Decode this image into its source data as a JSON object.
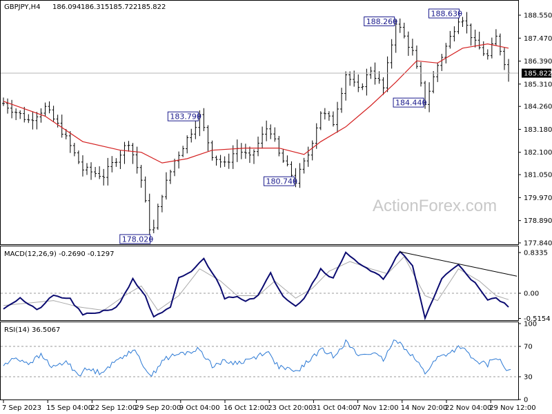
{
  "chart_data": [
    {
      "type": "candlestick",
      "title": "GBPJPY,H4",
      "ohlc_readout": [
        "186.094",
        "186.315",
        "185.722",
        "185.822"
      ],
      "watermark": "ActionForex.com",
      "ylim": [
        177.84,
        189.0
      ],
      "y_ticks": [
        "188.550",
        "187.470",
        "186.390",
        "185.310",
        "184.260",
        "183.180",
        "182.100",
        "181.050",
        "179.970",
        "178.890",
        "177.840"
      ],
      "last_price": "185.822",
      "x_ticks": [
        "7 Sep 2023",
        "15 Sep 04:00",
        "22 Sep 12:00",
        "29 Sep 20:00",
        "9 Oct 04:00",
        "16 Oct 12:00",
        "23 Oct 20:00",
        "31 Oct 04:00",
        "7 Nov 12:00",
        "14 Nov 20:00",
        "22 Nov 04:00",
        "29 Nov 12:00"
      ],
      "price_anchors": [
        {
          "t": 0,
          "v": 184.4
        },
        {
          "t": 6,
          "v": 183.6
        },
        {
          "t": 10,
          "v": 184.2
        },
        {
          "t": 14,
          "v": 183.1
        },
        {
          "t": 19,
          "v": 181.3
        },
        {
          "t": 24,
          "v": 181.0
        },
        {
          "t": 30,
          "v": 182.6
        },
        {
          "t": 33,
          "v": 180.8
        },
        {
          "t": 35.5,
          "v": 178.02
        },
        {
          "t": 37.5,
          "v": 179.9
        },
        {
          "t": 41,
          "v": 181.7
        },
        {
          "t": 47,
          "v": 183.79
        },
        {
          "t": 50,
          "v": 182.0
        },
        {
          "t": 53,
          "v": 181.5
        },
        {
          "t": 56,
          "v": 182.3
        },
        {
          "t": 59,
          "v": 181.8
        },
        {
          "t": 63.5,
          "v": 183.4
        },
        {
          "t": 66,
          "v": 182.0
        },
        {
          "t": 70,
          "v": 180.74
        },
        {
          "t": 73,
          "v": 182.0
        },
        {
          "t": 76,
          "v": 184.0
        },
        {
          "t": 79,
          "v": 183.5
        },
        {
          "t": 82,
          "v": 185.8
        },
        {
          "t": 85,
          "v": 185.0
        },
        {
          "t": 88,
          "v": 186.0
        },
        {
          "t": 91,
          "v": 185.1
        },
        {
          "t": 94,
          "v": 188.26
        },
        {
          "t": 98,
          "v": 186.8
        },
        {
          "t": 101,
          "v": 184.44
        },
        {
          "t": 104,
          "v": 186.2
        },
        {
          "t": 107,
          "v": 187.5
        },
        {
          "t": 109.5,
          "v": 188.63
        },
        {
          "t": 113,
          "v": 187.2
        },
        {
          "t": 116,
          "v": 186.6
        },
        {
          "t": 118,
          "v": 187.5
        },
        {
          "t": 121,
          "v": 185.82
        }
      ],
      "moving_average": [
        {
          "t": 0,
          "v": 184.5
        },
        {
          "t": 10,
          "v": 183.8
        },
        {
          "t": 19,
          "v": 182.6
        },
        {
          "t": 28,
          "v": 182.2
        },
        {
          "t": 33,
          "v": 182.1
        },
        {
          "t": 38,
          "v": 181.6
        },
        {
          "t": 44,
          "v": 181.8
        },
        {
          "t": 50,
          "v": 182.2
        },
        {
          "t": 58,
          "v": 182.3
        },
        {
          "t": 66,
          "v": 182.3
        },
        {
          "t": 72,
          "v": 182.0
        },
        {
          "t": 76,
          "v": 182.6
        },
        {
          "t": 82,
          "v": 183.3
        },
        {
          "t": 88,
          "v": 184.3
        },
        {
          "t": 94,
          "v": 185.4
        },
        {
          "t": 99,
          "v": 186.4
        },
        {
          "t": 104,
          "v": 186.3
        },
        {
          "t": 110,
          "v": 187.0
        },
        {
          "t": 116,
          "v": 187.2
        },
        {
          "t": 121,
          "v": 187.0
        }
      ],
      "annotations": [
        {
          "text": "178.020",
          "t": 35.5,
          "v": 178.02,
          "side": "left"
        },
        {
          "text": "183.790",
          "t": 47,
          "v": 183.79,
          "side": "left"
        },
        {
          "text": "180.740",
          "t": 70,
          "v": 180.74,
          "side": "left"
        },
        {
          "text": "188.260",
          "t": 94,
          "v": 188.26,
          "side": "left"
        },
        {
          "text": "184.440",
          "t": 101,
          "v": 184.44,
          "side": "left"
        },
        {
          "text": "188.630",
          "t": 109.5,
          "v": 188.63,
          "side": "left"
        }
      ]
    },
    {
      "type": "line",
      "title": "MACD(12,26,9) -0.2690 -0.1297",
      "ylim": [
        -0.62,
        0.88
      ],
      "y_ticks": [
        "0.8335",
        "0.00",
        "-0.5154"
      ],
      "zero_level": 0.0,
      "macd": [
        {
          "t": 0,
          "v": -0.3
        },
        {
          "t": 4,
          "v": -0.1
        },
        {
          "t": 8,
          "v": -0.35
        },
        {
          "t": 12,
          "v": -0.05
        },
        {
          "t": 16,
          "v": -0.12
        },
        {
          "t": 19,
          "v": -0.45
        },
        {
          "t": 23,
          "v": -0.38
        },
        {
          "t": 27,
          "v": -0.3
        },
        {
          "t": 31,
          "v": 0.28
        },
        {
          "t": 34,
          "v": -0.05
        },
        {
          "t": 36,
          "v": -0.5
        },
        {
          "t": 40,
          "v": -0.3
        },
        {
          "t": 42,
          "v": 0.3
        },
        {
          "t": 45,
          "v": 0.45
        },
        {
          "t": 48,
          "v": 0.7
        },
        {
          "t": 51,
          "v": 0.3
        },
        {
          "t": 53,
          "v": -0.1
        },
        {
          "t": 56,
          "v": -0.05
        },
        {
          "t": 58,
          "v": -0.15
        },
        {
          "t": 61,
          "v": -0.05
        },
        {
          "t": 64,
          "v": 0.4
        },
        {
          "t": 67,
          "v": -0.05
        },
        {
          "t": 70,
          "v": -0.25
        },
        {
          "t": 72,
          "v": -0.1
        },
        {
          "t": 76,
          "v": 0.5
        },
        {
          "t": 79,
          "v": 0.3
        },
        {
          "t": 82,
          "v": 0.85
        },
        {
          "t": 86,
          "v": 0.55
        },
        {
          "t": 89,
          "v": 0.4
        },
        {
          "t": 91,
          "v": 0.3
        },
        {
          "t": 95,
          "v": 0.85
        },
        {
          "t": 98,
          "v": 0.55
        },
        {
          "t": 101,
          "v": -0.5
        },
        {
          "t": 105,
          "v": 0.3
        },
        {
          "t": 109,
          "v": 0.6
        },
        {
          "t": 113,
          "v": 0.2
        },
        {
          "t": 116,
          "v": -0.15
        },
        {
          "t": 118,
          "v": -0.1
        },
        {
          "t": 121,
          "v": -0.27
        }
      ],
      "signal": [
        {
          "t": 0,
          "v": -0.25
        },
        {
          "t": 6,
          "v": -0.2
        },
        {
          "t": 12,
          "v": -0.15
        },
        {
          "t": 18,
          "v": -0.28
        },
        {
          "t": 24,
          "v": -0.35
        },
        {
          "t": 29,
          "v": -0.05
        },
        {
          "t": 33,
          "v": 0.15
        },
        {
          "t": 37,
          "v": -0.35
        },
        {
          "t": 42,
          "v": -0.05
        },
        {
          "t": 47,
          "v": 0.5
        },
        {
          "t": 52,
          "v": 0.25
        },
        {
          "t": 56,
          "v": -0.05
        },
        {
          "t": 61,
          "v": -0.05
        },
        {
          "t": 65,
          "v": 0.25
        },
        {
          "t": 70,
          "v": -0.1
        },
        {
          "t": 74,
          "v": 0.1
        },
        {
          "t": 78,
          "v": 0.45
        },
        {
          "t": 83,
          "v": 0.65
        },
        {
          "t": 88,
          "v": 0.5
        },
        {
          "t": 92,
          "v": 0.4
        },
        {
          "t": 96,
          "v": 0.75
        },
        {
          "t": 101,
          "v": -0.05
        },
        {
          "t": 104,
          "v": -0.15
        },
        {
          "t": 109,
          "v": 0.5
        },
        {
          "t": 114,
          "v": 0.25
        },
        {
          "t": 118,
          "v": -0.05
        },
        {
          "t": 121,
          "v": -0.13
        }
      ],
      "trendline": [
        {
          "t": 95,
          "v": 0.85
        },
        {
          "t": 123,
          "v": 0.35
        }
      ]
    },
    {
      "type": "line",
      "title": "RSI(14) 36.5067",
      "ylim": [
        0,
        100
      ],
      "y_ticks": [
        "100",
        "70",
        "30",
        "0"
      ],
      "levels": [
        70,
        30
      ],
      "rsi": [
        {
          "t": 0,
          "v": 45
        },
        {
          "t": 3,
          "v": 55
        },
        {
          "t": 6,
          "v": 48
        },
        {
          "t": 9,
          "v": 58
        },
        {
          "t": 12,
          "v": 42
        },
        {
          "t": 15,
          "v": 50
        },
        {
          "t": 18,
          "v": 33
        },
        {
          "t": 20,
          "v": 40
        },
        {
          "t": 23,
          "v": 36
        },
        {
          "t": 26,
          "v": 46
        },
        {
          "t": 28,
          "v": 55
        },
        {
          "t": 31,
          "v": 66
        },
        {
          "t": 33,
          "v": 50
        },
        {
          "t": 35.5,
          "v": 30
        },
        {
          "t": 38,
          "v": 52
        },
        {
          "t": 41,
          "v": 58
        },
        {
          "t": 44,
          "v": 62
        },
        {
          "t": 47,
          "v": 66
        },
        {
          "t": 50,
          "v": 45
        },
        {
          "t": 53,
          "v": 50
        },
        {
          "t": 56,
          "v": 48
        },
        {
          "t": 60,
          "v": 55
        },
        {
          "t": 63,
          "v": 64
        },
        {
          "t": 66,
          "v": 43
        },
        {
          "t": 70,
          "v": 36
        },
        {
          "t": 73,
          "v": 50
        },
        {
          "t": 76,
          "v": 66
        },
        {
          "t": 79,
          "v": 58
        },
        {
          "t": 82,
          "v": 76
        },
        {
          "t": 85,
          "v": 58
        },
        {
          "t": 88,
          "v": 62
        },
        {
          "t": 91,
          "v": 52
        },
        {
          "t": 94,
          "v": 80
        },
        {
          "t": 98,
          "v": 58
        },
        {
          "t": 101,
          "v": 35
        },
        {
          "t": 104,
          "v": 55
        },
        {
          "t": 107,
          "v": 62
        },
        {
          "t": 109.5,
          "v": 70
        },
        {
          "t": 113,
          "v": 50
        },
        {
          "t": 116,
          "v": 46
        },
        {
          "t": 118,
          "v": 57
        },
        {
          "t": 121,
          "v": 36.5
        }
      ]
    }
  ]
}
